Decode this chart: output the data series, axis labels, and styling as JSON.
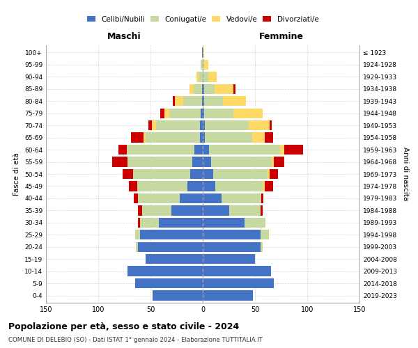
{
  "age_groups": [
    "0-4",
    "5-9",
    "10-14",
    "15-19",
    "20-24",
    "25-29",
    "30-34",
    "35-39",
    "40-44",
    "45-49",
    "50-54",
    "55-59",
    "60-64",
    "65-69",
    "70-74",
    "75-79",
    "80-84",
    "85-89",
    "90-94",
    "95-99",
    "100+"
  ],
  "birth_years": [
    "2019-2023",
    "2014-2018",
    "2009-2013",
    "2004-2008",
    "1999-2003",
    "1994-1998",
    "1989-1993",
    "1984-1988",
    "1979-1983",
    "1974-1978",
    "1969-1973",
    "1964-1968",
    "1959-1963",
    "1954-1958",
    "1949-1953",
    "1944-1948",
    "1939-1943",
    "1934-1938",
    "1929-1933",
    "1924-1928",
    "≤ 1923"
  ],
  "males": {
    "celibe": [
      48,
      65,
      72,
      55,
      62,
      60,
      42,
      30,
      22,
      15,
      12,
      10,
      8,
      3,
      3,
      2,
      1,
      1,
      0,
      0,
      1
    ],
    "coniugato": [
      0,
      0,
      0,
      0,
      2,
      5,
      18,
      28,
      40,
      48,
      55,
      62,
      65,
      52,
      42,
      30,
      18,
      8,
      4,
      2,
      0
    ],
    "vedovo": [
      0,
      0,
      0,
      0,
      0,
      0,
      0,
      0,
      0,
      0,
      0,
      0,
      0,
      2,
      4,
      5,
      8,
      4,
      2,
      0,
      0
    ],
    "divorziato": [
      0,
      0,
      0,
      0,
      0,
      0,
      2,
      4,
      4,
      8,
      10,
      15,
      8,
      12,
      3,
      4,
      2,
      0,
      0,
      0,
      0
    ]
  },
  "females": {
    "nubile": [
      48,
      68,
      65,
      50,
      55,
      55,
      40,
      25,
      18,
      12,
      10,
      8,
      6,
      2,
      2,
      1,
      1,
      1,
      0,
      0,
      0
    ],
    "coniugata": [
      0,
      0,
      0,
      0,
      2,
      8,
      20,
      30,
      38,
      45,
      52,
      58,
      68,
      45,
      42,
      28,
      18,
      10,
      5,
      1,
      0
    ],
    "vedova": [
      0,
      0,
      0,
      0,
      0,
      0,
      0,
      0,
      0,
      2,
      2,
      2,
      4,
      12,
      20,
      28,
      22,
      18,
      8,
      4,
      1
    ],
    "divorziata": [
      0,
      0,
      0,
      0,
      0,
      0,
      0,
      2,
      2,
      8,
      8,
      10,
      18,
      8,
      2,
      0,
      0,
      2,
      0,
      0,
      0
    ]
  },
  "colors": {
    "celibe": "#4472C4",
    "coniugato": "#c5d9a0",
    "vedovo": "#FFD966",
    "divorziato": "#CC0000"
  },
  "xlim": 150,
  "title": "Popolazione per età, sesso e stato civile - 2024",
  "subtitle": "COMUNE DI DELEBIO (SO) - Dati ISTAT 1° gennaio 2024 - Elaborazione TUTTITALIA.IT",
  "xlabel_left": "Maschi",
  "xlabel_right": "Femmine",
  "ylabel_left": "Fasce di età",
  "ylabel_right": "Anni di nascita",
  "background_color": "#ffffff",
  "grid_color": "#bbbbbb"
}
